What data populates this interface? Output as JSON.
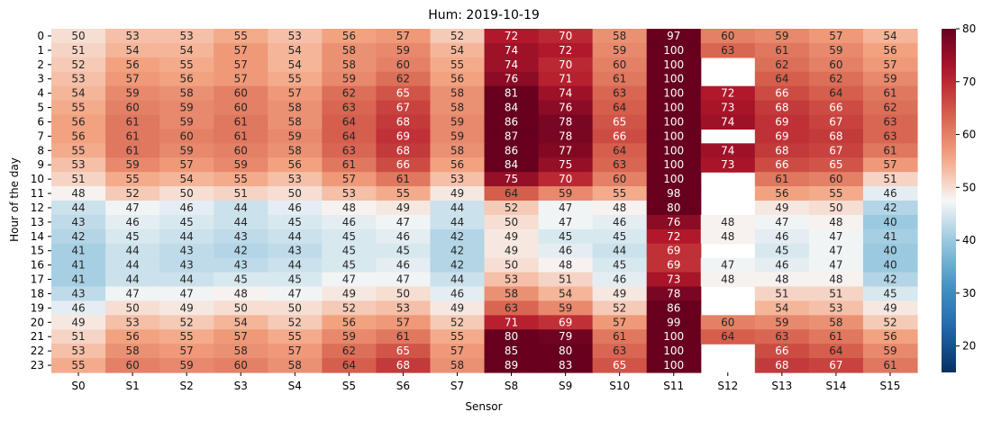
{
  "chart_data": {
    "type": "heatmap",
    "title": "Hum: 2019-10-19",
    "xlabel": "Sensor",
    "ylabel": "Hour of the day",
    "colormap": "RdBu_r",
    "vmin": 15,
    "vmax": 80,
    "colorbar_ticks": [
      20,
      30,
      40,
      50,
      60,
      70,
      80
    ],
    "x_categories": [
      "S0",
      "S1",
      "S2",
      "S3",
      "S4",
      "S5",
      "S6",
      "S7",
      "S8",
      "S9",
      "S10",
      "S11",
      "S12",
      "S13",
      "S14",
      "S15"
    ],
    "y_categories": [
      "0",
      "1",
      "2",
      "3",
      "4",
      "5",
      "6",
      "7",
      "8",
      "9",
      "10",
      "11",
      "12",
      "13",
      "14",
      "15",
      "16",
      "17",
      "18",
      "19",
      "20",
      "21",
      "22",
      "23"
    ],
    "values": [
      [
        50,
        53,
        53,
        55,
        53,
        56,
        57,
        52,
        72,
        70,
        58,
        97,
        60,
        59,
        57,
        54
      ],
      [
        51,
        54,
        54,
        57,
        54,
        58,
        59,
        54,
        74,
        72,
        59,
        100,
        63,
        61,
        59,
        56
      ],
      [
        52,
        56,
        55,
        57,
        54,
        58,
        60,
        55,
        74,
        70,
        60,
        100,
        null,
        62,
        60,
        57
      ],
      [
        53,
        57,
        56,
        57,
        55,
        59,
        62,
        56,
        76,
        71,
        61,
        100,
        null,
        64,
        62,
        59
      ],
      [
        54,
        59,
        58,
        60,
        57,
        62,
        65,
        58,
        81,
        74,
        63,
        100,
        72,
        66,
        64,
        61
      ],
      [
        55,
        60,
        59,
        60,
        58,
        63,
        67,
        58,
        84,
        76,
        64,
        100,
        73,
        68,
        66,
        62
      ],
      [
        56,
        61,
        59,
        61,
        58,
        64,
        68,
        59,
        86,
        78,
        65,
        100,
        74,
        69,
        67,
        63
      ],
      [
        56,
        61,
        60,
        61,
        59,
        64,
        69,
        59,
        87,
        78,
        66,
        100,
        null,
        69,
        68,
        63
      ],
      [
        55,
        61,
        59,
        60,
        58,
        63,
        68,
        58,
        86,
        77,
        64,
        100,
        74,
        68,
        67,
        61
      ],
      [
        53,
        59,
        57,
        59,
        56,
        61,
        66,
        56,
        84,
        75,
        63,
        100,
        73,
        66,
        65,
        57
      ],
      [
        51,
        55,
        54,
        55,
        53,
        57,
        61,
        53,
        75,
        70,
        60,
        100,
        null,
        61,
        60,
        51
      ],
      [
        48,
        52,
        50,
        51,
        50,
        53,
        55,
        49,
        64,
        59,
        55,
        98,
        null,
        56,
        55,
        46
      ],
      [
        44,
        47,
        46,
        44,
        46,
        48,
        49,
        44,
        52,
        47,
        48,
        80,
        null,
        49,
        50,
        42
      ],
      [
        43,
        46,
        45,
        44,
        45,
        46,
        47,
        44,
        50,
        47,
        46,
        76,
        48,
        47,
        48,
        40
      ],
      [
        42,
        45,
        44,
        43,
        44,
        45,
        46,
        42,
        49,
        45,
        45,
        72,
        48,
        46,
        47,
        41
      ],
      [
        41,
        44,
        43,
        42,
        43,
        45,
        45,
        42,
        49,
        46,
        44,
        69,
        null,
        45,
        47,
        40
      ],
      [
        41,
        44,
        43,
        43,
        44,
        45,
        46,
        42,
        50,
        48,
        45,
        69,
        47,
        46,
        47,
        40
      ],
      [
        41,
        44,
        44,
        45,
        45,
        47,
        47,
        44,
        53,
        51,
        46,
        73,
        48,
        48,
        48,
        42
      ],
      [
        43,
        47,
        47,
        48,
        47,
        49,
        50,
        46,
        58,
        54,
        49,
        78,
        null,
        51,
        51,
        45
      ],
      [
        46,
        50,
        49,
        50,
        50,
        52,
        53,
        49,
        63,
        59,
        52,
        86,
        null,
        54,
        53,
        49
      ],
      [
        49,
        53,
        52,
        54,
        52,
        56,
        57,
        52,
        71,
        69,
        57,
        99,
        60,
        59,
        58,
        52
      ],
      [
        51,
        56,
        55,
        57,
        55,
        59,
        61,
        55,
        80,
        79,
        61,
        100,
        64,
        63,
        61,
        56
      ],
      [
        53,
        58,
        57,
        58,
        57,
        62,
        65,
        57,
        85,
        80,
        63,
        100,
        null,
        66,
        64,
        59
      ],
      [
        55,
        60,
        59,
        60,
        58,
        64,
        68,
        58,
        89,
        83,
        65,
        100,
        null,
        68,
        67,
        61
      ]
    ]
  }
}
